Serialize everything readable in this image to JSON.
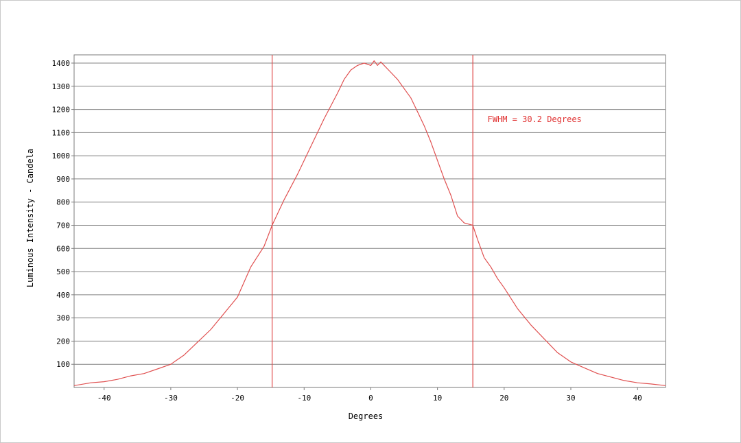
{
  "chart_data": {
    "type": "line",
    "xlabel": "Degrees",
    "ylabel": "Luminous Intensity - Candela",
    "xlim": [
      -44.5,
      44.2
    ],
    "ylim": [
      0,
      1400
    ],
    "x_ticks": [
      -40,
      -30,
      -20,
      -10,
      0,
      10,
      20,
      30,
      40
    ],
    "y_ticks": [
      100,
      200,
      300,
      400,
      500,
      600,
      700,
      800,
      900,
      1000,
      1100,
      1200,
      1300,
      1400
    ],
    "grid": "horizontal",
    "annotation": {
      "text": "FWHM = 30.2 Degrees",
      "x": 17.5,
      "y": 1145
    },
    "vlines": [
      -14.8,
      15.3
    ],
    "colors": {
      "line": "#e05050",
      "vline": "#e04848",
      "annotation": "#e03030",
      "grid": "#808080"
    },
    "series": [
      {
        "x": [
          -44.5,
          -42,
          -40,
          -38,
          -36,
          -34,
          -32,
          -30,
          -28,
          -26,
          -24,
          -22,
          -20,
          -18,
          -16,
          -14.8,
          -13,
          -11,
          -9,
          -7,
          -5,
          -4,
          -3,
          -2,
          -1,
          0,
          0.5,
          1,
          1.5,
          2,
          3,
          4,
          5,
          6,
          7,
          8,
          9,
          10,
          11,
          12,
          13,
          14,
          15.3,
          16,
          17,
          18,
          19,
          20,
          22,
          24,
          26,
          28,
          30,
          32,
          34,
          36,
          38,
          40,
          42,
          44.2
        ],
        "y": [
          8,
          20,
          25,
          35,
          50,
          60,
          80,
          100,
          140,
          195,
          250,
          320,
          390,
          520,
          610,
          700,
          810,
          920,
          1040,
          1160,
          1270,
          1330,
          1370,
          1390,
          1400,
          1390,
          1410,
          1390,
          1405,
          1390,
          1360,
          1330,
          1290,
          1250,
          1190,
          1130,
          1060,
          980,
          900,
          830,
          740,
          710,
          700,
          640,
          560,
          520,
          470,
          430,
          340,
          270,
          210,
          150,
          110,
          85,
          60,
          45,
          30,
          20,
          15,
          8
        ]
      }
    ]
  }
}
